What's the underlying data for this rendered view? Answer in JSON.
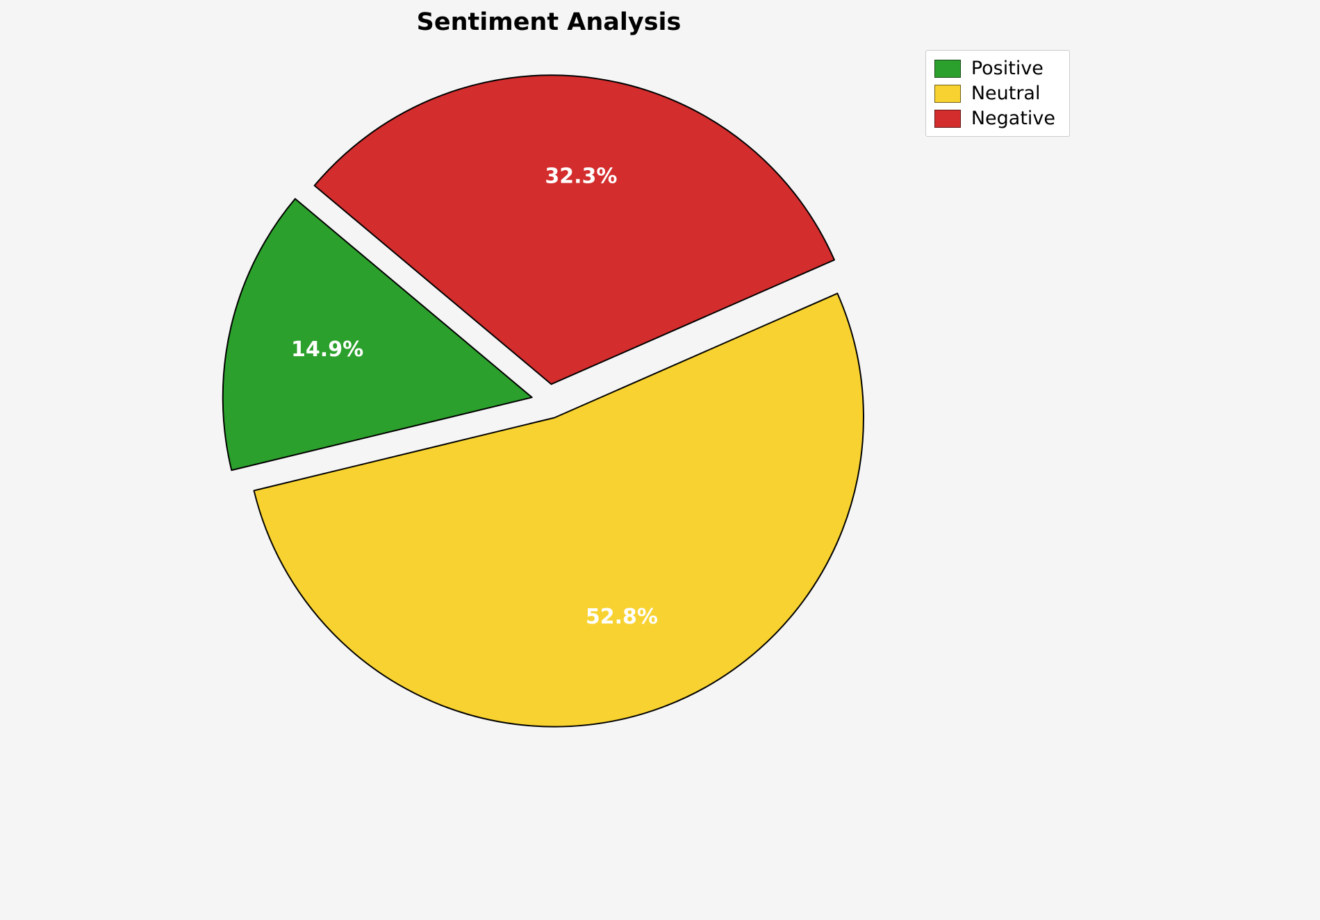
{
  "colors": {
    "background": "#f5f5f5",
    "title_text": "#000000",
    "pct_label": "#ffffff",
    "wedge_edge": "#000000",
    "legend_bg": "#ffffff",
    "legend_border": "#cbcbcb"
  },
  "chart_data": {
    "type": "pie",
    "title": "Sentiment Analysis",
    "labels": [
      "Positive",
      "Neutral",
      "Negative"
    ],
    "values": [
      14.9,
      52.8,
      32.3
    ],
    "pct_labels": [
      "14.9%",
      "52.8%",
      "32.3%"
    ],
    "slice_colors": [
      "#2ca02c",
      "#f7d230",
      "#d32d2d"
    ],
    "start_angle": 140,
    "counterclockwise": true,
    "explode": 0.056,
    "pct_distance": 0.68,
    "legend_position": "upper right",
    "legend_entries": [
      {
        "label": "Positive",
        "color": "#2ca02c"
      },
      {
        "label": "Neutral",
        "color": "#f7d230"
      },
      {
        "label": "Negative",
        "color": "#d32d2d"
      }
    ]
  }
}
